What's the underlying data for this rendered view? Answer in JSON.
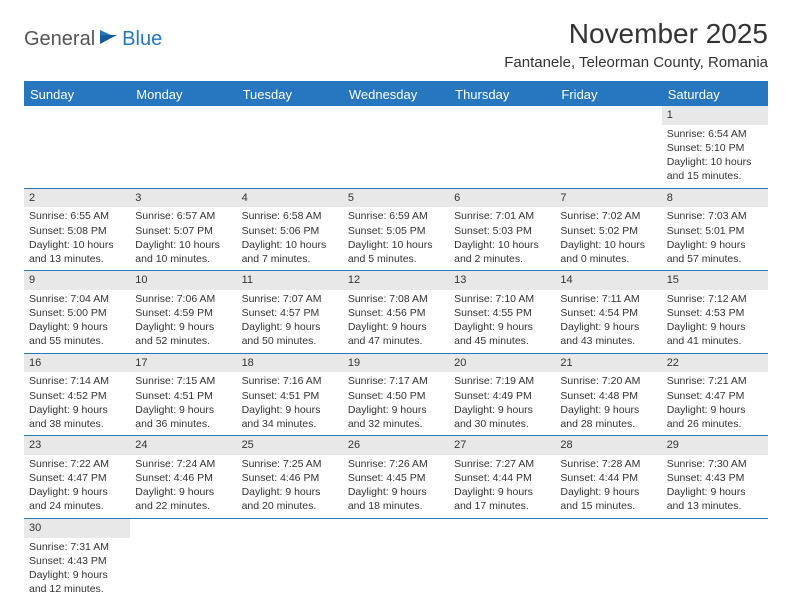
{
  "logo": {
    "text1": "General",
    "text2": "Blue"
  },
  "title": "November 2025",
  "subtitle": "Fantanele, Teleorman County, Romania",
  "colors": {
    "accent": "#2676c0",
    "header_bg": "#e8e8e8",
    "text": "#333333",
    "background": "#ffffff"
  },
  "weekdays": [
    "Sunday",
    "Monday",
    "Tuesday",
    "Wednesday",
    "Thursday",
    "Friday",
    "Saturday"
  ],
  "weeks": [
    [
      {
        "empty": true
      },
      {
        "empty": true
      },
      {
        "empty": true
      },
      {
        "empty": true
      },
      {
        "empty": true
      },
      {
        "empty": true
      },
      {
        "day": "1",
        "sunrise": "Sunrise: 6:54 AM",
        "sunset": "Sunset: 5:10 PM",
        "daylight1": "Daylight: 10 hours",
        "daylight2": "and 15 minutes."
      }
    ],
    [
      {
        "day": "2",
        "sunrise": "Sunrise: 6:55 AM",
        "sunset": "Sunset: 5:08 PM",
        "daylight1": "Daylight: 10 hours",
        "daylight2": "and 13 minutes."
      },
      {
        "day": "3",
        "sunrise": "Sunrise: 6:57 AM",
        "sunset": "Sunset: 5:07 PM",
        "daylight1": "Daylight: 10 hours",
        "daylight2": "and 10 minutes."
      },
      {
        "day": "4",
        "sunrise": "Sunrise: 6:58 AM",
        "sunset": "Sunset: 5:06 PM",
        "daylight1": "Daylight: 10 hours",
        "daylight2": "and 7 minutes."
      },
      {
        "day": "5",
        "sunrise": "Sunrise: 6:59 AM",
        "sunset": "Sunset: 5:05 PM",
        "daylight1": "Daylight: 10 hours",
        "daylight2": "and 5 minutes."
      },
      {
        "day": "6",
        "sunrise": "Sunrise: 7:01 AM",
        "sunset": "Sunset: 5:03 PM",
        "daylight1": "Daylight: 10 hours",
        "daylight2": "and 2 minutes."
      },
      {
        "day": "7",
        "sunrise": "Sunrise: 7:02 AM",
        "sunset": "Sunset: 5:02 PM",
        "daylight1": "Daylight: 10 hours",
        "daylight2": "and 0 minutes."
      },
      {
        "day": "8",
        "sunrise": "Sunrise: 7:03 AM",
        "sunset": "Sunset: 5:01 PM",
        "daylight1": "Daylight: 9 hours",
        "daylight2": "and 57 minutes."
      }
    ],
    [
      {
        "day": "9",
        "sunrise": "Sunrise: 7:04 AM",
        "sunset": "Sunset: 5:00 PM",
        "daylight1": "Daylight: 9 hours",
        "daylight2": "and 55 minutes."
      },
      {
        "day": "10",
        "sunrise": "Sunrise: 7:06 AM",
        "sunset": "Sunset: 4:59 PM",
        "daylight1": "Daylight: 9 hours",
        "daylight2": "and 52 minutes."
      },
      {
        "day": "11",
        "sunrise": "Sunrise: 7:07 AM",
        "sunset": "Sunset: 4:57 PM",
        "daylight1": "Daylight: 9 hours",
        "daylight2": "and 50 minutes."
      },
      {
        "day": "12",
        "sunrise": "Sunrise: 7:08 AM",
        "sunset": "Sunset: 4:56 PM",
        "daylight1": "Daylight: 9 hours",
        "daylight2": "and 47 minutes."
      },
      {
        "day": "13",
        "sunrise": "Sunrise: 7:10 AM",
        "sunset": "Sunset: 4:55 PM",
        "daylight1": "Daylight: 9 hours",
        "daylight2": "and 45 minutes."
      },
      {
        "day": "14",
        "sunrise": "Sunrise: 7:11 AM",
        "sunset": "Sunset: 4:54 PM",
        "daylight1": "Daylight: 9 hours",
        "daylight2": "and 43 minutes."
      },
      {
        "day": "15",
        "sunrise": "Sunrise: 7:12 AM",
        "sunset": "Sunset: 4:53 PM",
        "daylight1": "Daylight: 9 hours",
        "daylight2": "and 41 minutes."
      }
    ],
    [
      {
        "day": "16",
        "sunrise": "Sunrise: 7:14 AM",
        "sunset": "Sunset: 4:52 PM",
        "daylight1": "Daylight: 9 hours",
        "daylight2": "and 38 minutes."
      },
      {
        "day": "17",
        "sunrise": "Sunrise: 7:15 AM",
        "sunset": "Sunset: 4:51 PM",
        "daylight1": "Daylight: 9 hours",
        "daylight2": "and 36 minutes."
      },
      {
        "day": "18",
        "sunrise": "Sunrise: 7:16 AM",
        "sunset": "Sunset: 4:51 PM",
        "daylight1": "Daylight: 9 hours",
        "daylight2": "and 34 minutes."
      },
      {
        "day": "19",
        "sunrise": "Sunrise: 7:17 AM",
        "sunset": "Sunset: 4:50 PM",
        "daylight1": "Daylight: 9 hours",
        "daylight2": "and 32 minutes."
      },
      {
        "day": "20",
        "sunrise": "Sunrise: 7:19 AM",
        "sunset": "Sunset: 4:49 PM",
        "daylight1": "Daylight: 9 hours",
        "daylight2": "and 30 minutes."
      },
      {
        "day": "21",
        "sunrise": "Sunrise: 7:20 AM",
        "sunset": "Sunset: 4:48 PM",
        "daylight1": "Daylight: 9 hours",
        "daylight2": "and 28 minutes."
      },
      {
        "day": "22",
        "sunrise": "Sunrise: 7:21 AM",
        "sunset": "Sunset: 4:47 PM",
        "daylight1": "Daylight: 9 hours",
        "daylight2": "and 26 minutes."
      }
    ],
    [
      {
        "day": "23",
        "sunrise": "Sunrise: 7:22 AM",
        "sunset": "Sunset: 4:47 PM",
        "daylight1": "Daylight: 9 hours",
        "daylight2": "and 24 minutes."
      },
      {
        "day": "24",
        "sunrise": "Sunrise: 7:24 AM",
        "sunset": "Sunset: 4:46 PM",
        "daylight1": "Daylight: 9 hours",
        "daylight2": "and 22 minutes."
      },
      {
        "day": "25",
        "sunrise": "Sunrise: 7:25 AM",
        "sunset": "Sunset: 4:46 PM",
        "daylight1": "Daylight: 9 hours",
        "daylight2": "and 20 minutes."
      },
      {
        "day": "26",
        "sunrise": "Sunrise: 7:26 AM",
        "sunset": "Sunset: 4:45 PM",
        "daylight1": "Daylight: 9 hours",
        "daylight2": "and 18 minutes."
      },
      {
        "day": "27",
        "sunrise": "Sunrise: 7:27 AM",
        "sunset": "Sunset: 4:44 PM",
        "daylight1": "Daylight: 9 hours",
        "daylight2": "and 17 minutes."
      },
      {
        "day": "28",
        "sunrise": "Sunrise: 7:28 AM",
        "sunset": "Sunset: 4:44 PM",
        "daylight1": "Daylight: 9 hours",
        "daylight2": "and 15 minutes."
      },
      {
        "day": "29",
        "sunrise": "Sunrise: 7:30 AM",
        "sunset": "Sunset: 4:43 PM",
        "daylight1": "Daylight: 9 hours",
        "daylight2": "and 13 minutes."
      }
    ],
    [
      {
        "day": "30",
        "sunrise": "Sunrise: 7:31 AM",
        "sunset": "Sunset: 4:43 PM",
        "daylight1": "Daylight: 9 hours",
        "daylight2": "and 12 minutes."
      },
      {
        "empty": true
      },
      {
        "empty": true
      },
      {
        "empty": true
      },
      {
        "empty": true
      },
      {
        "empty": true
      },
      {
        "empty": true
      }
    ]
  ]
}
